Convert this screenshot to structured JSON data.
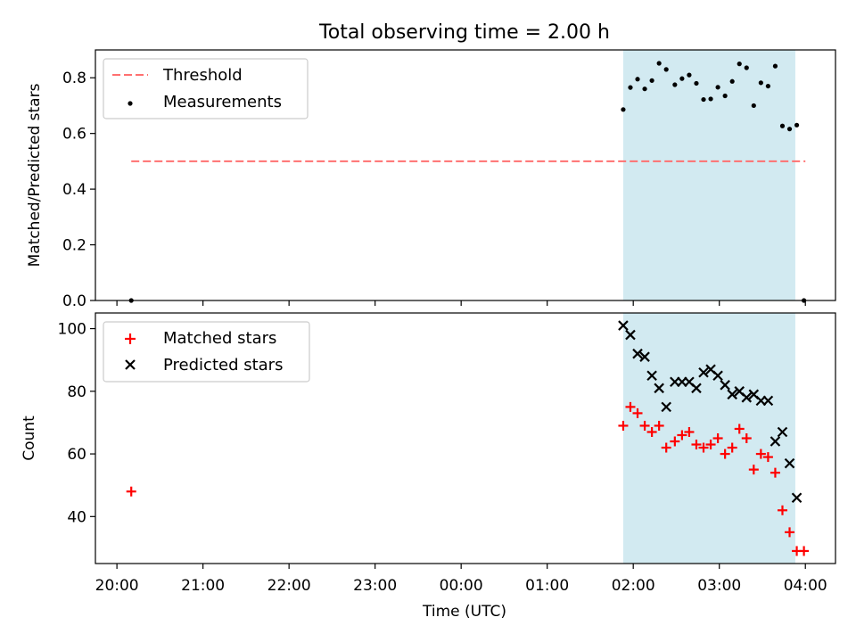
{
  "title": "Total observing time = 2.00 h",
  "chart_data": [
    {
      "type": "scatter",
      "panel": "top",
      "ylabel": "Matched/Predicted stars",
      "xlabel": "",
      "x_unit": "hours after 20:00 UTC",
      "xlim": [
        19.75,
        4.35
      ],
      "ylim": [
        0.0,
        0.9
      ],
      "yticks": [
        0.0,
        0.2,
        0.4,
        0.6,
        0.8
      ],
      "ytick_labels": [
        "0.0",
        "0.2",
        "0.4",
        "0.6",
        "0.8"
      ],
      "observing_window": [
        "01:53",
        "03:53"
      ],
      "legend_position": "upper-left",
      "grid": false,
      "threshold": {
        "name": "Threshold",
        "y": 0.5,
        "x_range": [
          "20:10",
          "04:00"
        ],
        "color": "#ff7070"
      },
      "series": [
        {
          "name": "Measurements",
          "color": "#000000",
          "points": [
            [
              "20:10",
              0.0
            ],
            [
              "01:53",
              0.686
            ],
            [
              "01:58",
              0.765
            ],
            [
              "02:03",
              0.795
            ],
            [
              "02:08",
              0.76
            ],
            [
              "02:13",
              0.79
            ],
            [
              "02:18",
              0.852
            ],
            [
              "02:23",
              0.83
            ],
            [
              "02:29",
              0.775
            ],
            [
              "02:34",
              0.797
            ],
            [
              "02:39",
              0.81
            ],
            [
              "02:44",
              0.78
            ],
            [
              "02:49",
              0.722
            ],
            [
              "02:54",
              0.724
            ],
            [
              "02:59",
              0.766
            ],
            [
              "03:04",
              0.735
            ],
            [
              "03:09",
              0.787
            ],
            [
              "03:14",
              0.85
            ],
            [
              "03:19",
              0.836
            ],
            [
              "03:24",
              0.7
            ],
            [
              "03:29",
              0.782
            ],
            [
              "03:34",
              0.77
            ],
            [
              "03:39",
              0.842
            ],
            [
              "03:44",
              0.627
            ],
            [
              "03:49",
              0.616
            ],
            [
              "03:54",
              0.63
            ],
            [
              "03:59",
              0.0
            ]
          ]
        }
      ]
    },
    {
      "type": "scatter",
      "panel": "bottom",
      "ylabel": "Count",
      "xlabel": "Time (UTC)",
      "xlim": [
        19.75,
        4.35
      ],
      "ylim": [
        25.0,
        105.0
      ],
      "yticks": [
        40,
        60,
        80,
        100
      ],
      "ytick_labels": [
        "40",
        "60",
        "80",
        "100"
      ],
      "xtick_labels": [
        "20:00",
        "21:00",
        "22:00",
        "23:00",
        "00:00",
        "01:00",
        "02:00",
        "03:00",
        "04:00"
      ],
      "observing_window": [
        "01:53",
        "03:53"
      ],
      "legend_position": "upper-left",
      "grid": false,
      "series": [
        {
          "name": "Matched stars",
          "marker": "plus",
          "color": "#ff0000",
          "points": [
            [
              "20:10",
              48
            ],
            [
              "01:53",
              69
            ],
            [
              "01:58",
              75
            ],
            [
              "02:03",
              73
            ],
            [
              "02:08",
              69
            ],
            [
              "02:13",
              67
            ],
            [
              "02:18",
              69
            ],
            [
              "02:23",
              62
            ],
            [
              "02:29",
              64
            ],
            [
              "02:34",
              66
            ],
            [
              "02:39",
              67
            ],
            [
              "02:44",
              63
            ],
            [
              "02:49",
              62
            ],
            [
              "02:54",
              63
            ],
            [
              "02:59",
              65
            ],
            [
              "03:04",
              60
            ],
            [
              "03:09",
              62
            ],
            [
              "03:14",
              68
            ],
            [
              "03:19",
              65
            ],
            [
              "03:24",
              55
            ],
            [
              "03:29",
              60
            ],
            [
              "03:34",
              59
            ],
            [
              "03:39",
              54
            ],
            [
              "03:44",
              42
            ],
            [
              "03:49",
              35
            ],
            [
              "03:54",
              29
            ],
            [
              "03:59",
              29
            ]
          ]
        },
        {
          "name": "Predicted stars",
          "marker": "x",
          "color": "#000000",
          "points": [
            [
              "01:53",
              101
            ],
            [
              "01:58",
              98
            ],
            [
              "02:03",
              92
            ],
            [
              "02:08",
              91
            ],
            [
              "02:13",
              85
            ],
            [
              "02:18",
              81
            ],
            [
              "02:23",
              75
            ],
            [
              "02:29",
              83
            ],
            [
              "02:34",
              83
            ],
            [
              "02:39",
              83
            ],
            [
              "02:44",
              81
            ],
            [
              "02:49",
              86
            ],
            [
              "02:54",
              87
            ],
            [
              "02:59",
              85
            ],
            [
              "03:04",
              82
            ],
            [
              "03:09",
              79
            ],
            [
              "03:14",
              80
            ],
            [
              "03:19",
              78
            ],
            [
              "03:24",
              79
            ],
            [
              "03:29",
              77
            ],
            [
              "03:34",
              77
            ],
            [
              "03:39",
              64
            ],
            [
              "03:44",
              67
            ],
            [
              "03:49",
              57
            ],
            [
              "03:54",
              46
            ]
          ]
        }
      ]
    }
  ]
}
